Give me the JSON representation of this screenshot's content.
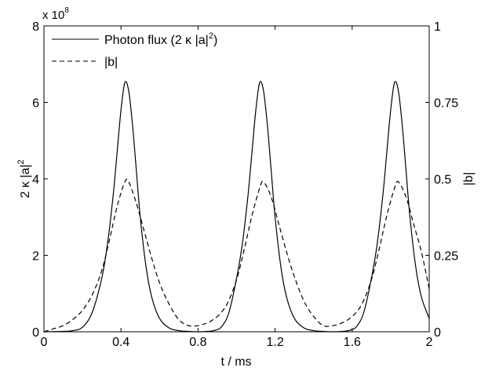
{
  "chart_data": {
    "type": "line",
    "title": "",
    "xlabel": "t / ms",
    "ylabel_left": "2 κ |a|",
    "ylabel_left_sup": "2",
    "ylabel_right": "|b|",
    "xlim": [
      0,
      2
    ],
    "ylim_left": [
      0,
      8
    ],
    "ylim_right": [
      0,
      1
    ],
    "left_exponent_base": "x 10",
    "left_exponent_power": "8",
    "grid": false,
    "legend_position": "top-left",
    "x_ticks": [
      {
        "value": 0,
        "label": "0"
      },
      {
        "value": 0.4,
        "label": "0.4"
      },
      {
        "value": 0.8,
        "label": "0.8"
      },
      {
        "value": 1.2,
        "label": "1.2"
      },
      {
        "value": 1.6,
        "label": "1.6"
      },
      {
        "value": 2,
        "label": "2"
      }
    ],
    "y_left_ticks": [
      {
        "value": 0,
        "label": "0"
      },
      {
        "value": 2,
        "label": "2"
      },
      {
        "value": 4,
        "label": "4"
      },
      {
        "value": 6,
        "label": "6"
      },
      {
        "value": 8,
        "label": "8"
      }
    ],
    "y_right_ticks": [
      {
        "value": 0,
        "label": "0"
      },
      {
        "value": 0.25,
        "label": "0.25"
      },
      {
        "value": 0.5,
        "label": "0.5"
      },
      {
        "value": 0.75,
        "label": "0.75"
      },
      {
        "value": 1,
        "label": "1"
      }
    ],
    "series": [
      {
        "name": "Photon flux (2 κ |a|",
        "name_sup": "2",
        "name_suffix": ")",
        "axis": "left",
        "style": "solid",
        "color": "#000000",
        "x": [
          0,
          0.1,
          0.15,
          0.2,
          0.25,
          0.3,
          0.33,
          0.36,
          0.38,
          0.4,
          0.42,
          0.44,
          0.46,
          0.48,
          0.5,
          0.53,
          0.56,
          0.6,
          0.65,
          0.7,
          0.75,
          0.8,
          0.85,
          0.88,
          0.92,
          0.96,
          1.0,
          1.03,
          1.06,
          1.08,
          1.1,
          1.12,
          1.14,
          1.16,
          1.18,
          1.2,
          1.23,
          1.26,
          1.3,
          1.35,
          1.4,
          1.45,
          1.5,
          1.55,
          1.58,
          1.62,
          1.66,
          1.7,
          1.73,
          1.76,
          1.78,
          1.8,
          1.82,
          1.84,
          1.86,
          1.88,
          1.9,
          1.93,
          1.96,
          2.0
        ],
        "y": [
          0,
          0.01,
          0.03,
          0.12,
          0.5,
          1.4,
          2.3,
          3.6,
          4.7,
          5.8,
          6.52,
          6.3,
          5.4,
          4.2,
          3.0,
          1.7,
          0.9,
          0.35,
          0.1,
          0.03,
          0.01,
          0,
          0.01,
          0.03,
          0.12,
          0.5,
          1.4,
          2.3,
          3.6,
          4.7,
          5.8,
          6.52,
          6.3,
          5.4,
          4.2,
          3.0,
          1.7,
          0.9,
          0.35,
          0.1,
          0.03,
          0.01,
          0,
          0.01,
          0.03,
          0.12,
          0.5,
          1.4,
          2.3,
          3.6,
          4.7,
          5.8,
          6.52,
          6.3,
          5.4,
          4.2,
          3.0,
          1.7,
          0.9,
          0.35
        ]
      },
      {
        "name": "|b|",
        "axis": "right",
        "style": "dashed",
        "color": "#000000",
        "x": [
          0,
          0.05,
          0.1,
          0.15,
          0.2,
          0.25,
          0.3,
          0.34,
          0.38,
          0.42,
          0.44,
          0.48,
          0.52,
          0.56,
          0.6,
          0.65,
          0.7,
          0.75,
          0.8,
          0.85,
          0.9,
          0.95,
          1.0,
          1.04,
          1.08,
          1.12,
          1.14,
          1.18,
          1.22,
          1.26,
          1.3,
          1.35,
          1.4,
          1.45,
          1.5,
          1.55,
          1.6,
          1.65,
          1.7,
          1.74,
          1.78,
          1.82,
          1.84,
          1.88,
          1.92,
          1.96,
          2.0
        ],
        "y": [
          0.0,
          0.01,
          0.02,
          0.04,
          0.07,
          0.12,
          0.2,
          0.3,
          0.41,
          0.49,
          0.49,
          0.42,
          0.33,
          0.24,
          0.16,
          0.09,
          0.04,
          0.02,
          0.02,
          0.03,
          0.05,
          0.09,
          0.17,
          0.27,
          0.38,
          0.47,
          0.49,
          0.44,
          0.35,
          0.26,
          0.18,
          0.1,
          0.05,
          0.02,
          0.02,
          0.03,
          0.05,
          0.09,
          0.17,
          0.27,
          0.38,
          0.47,
          0.49,
          0.44,
          0.35,
          0.26,
          0.14
        ]
      }
    ]
  }
}
